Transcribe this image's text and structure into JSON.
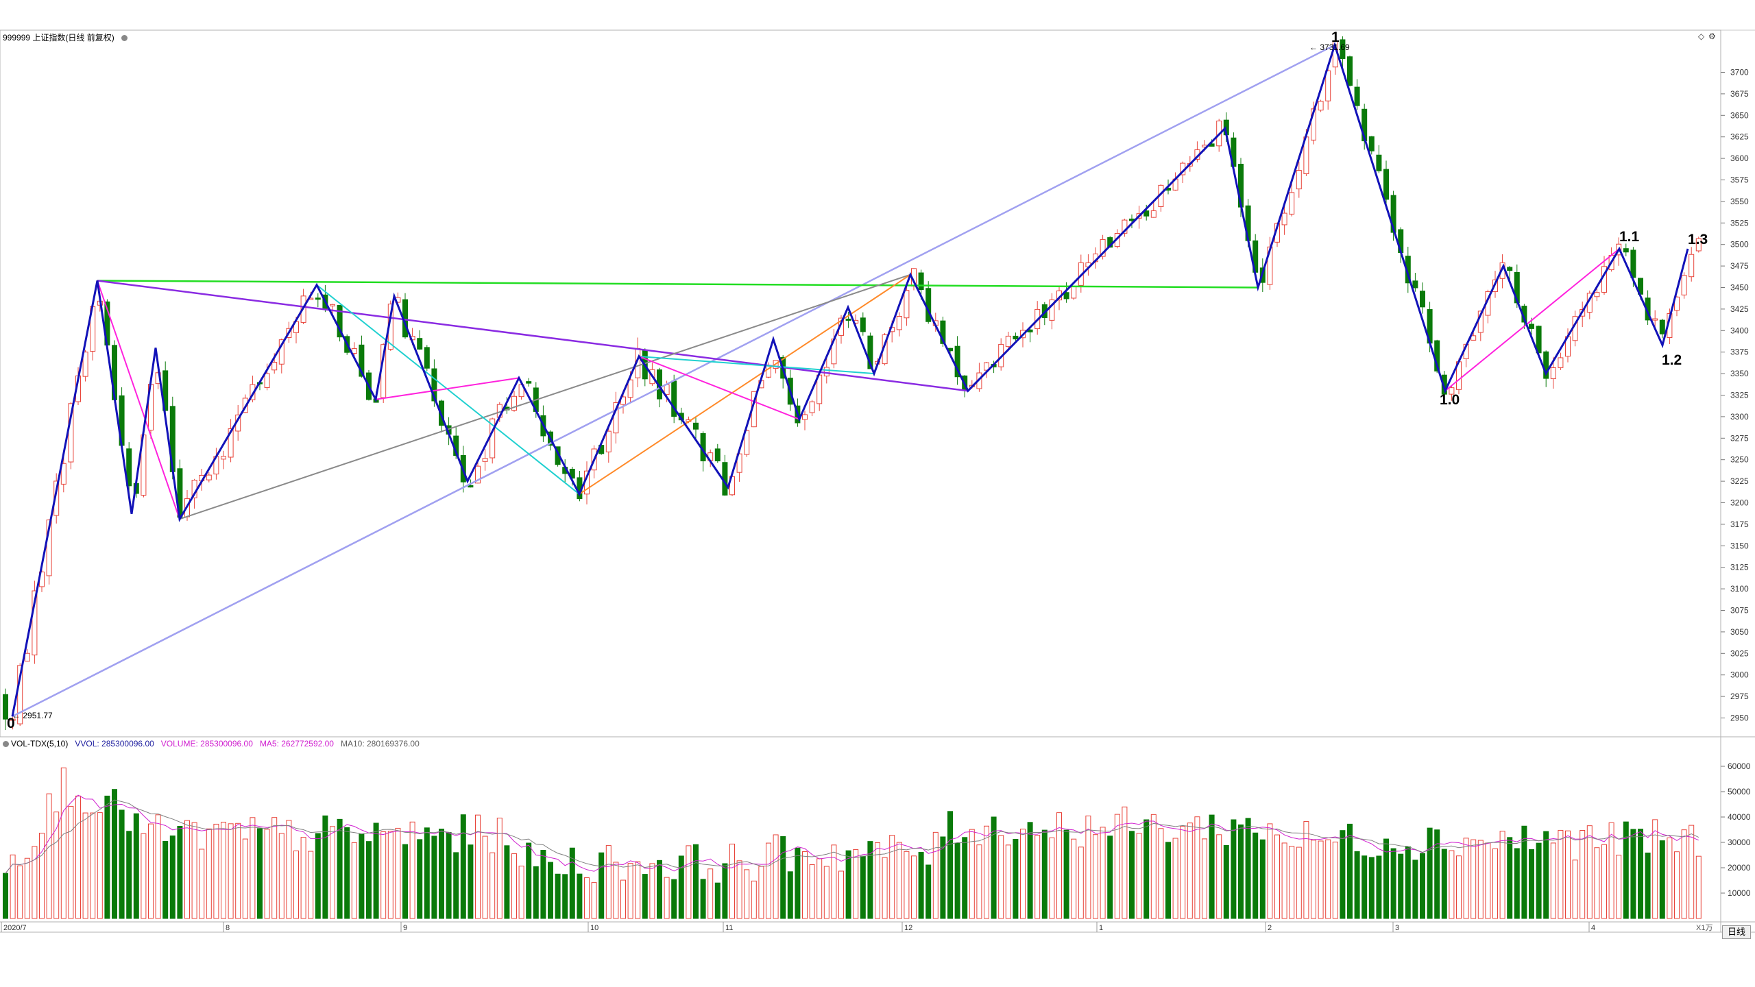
{
  "header": {
    "symbol_title": "999999 上证指数(日线 前复权)",
    "indicator_name": "VOL-TDX(5,10)",
    "vvol_label": "VVOL: 285300096.00",
    "volume_label": "VOLUME: 285300096.00",
    "ma5_label": "MA5: 262772592.00",
    "ma10_label": "MA10: 280169376.00"
  },
  "annotations": {
    "high_label": "3731.69",
    "low_label": "2951.77",
    "wave_0": "0",
    "wave_1": "1",
    "wave_1_0": "1.0",
    "wave_1_1": "1.1",
    "wave_1_2": "1.2",
    "wave_1_3": "1.3"
  },
  "controls": {
    "period_button": "日线",
    "volume_unit": "X1万"
  },
  "colors": {
    "up": "#e8443a",
    "down": "#0a7a0a",
    "zigzag": "#1212b8",
    "ma5": "#d020d0",
    "ma10": "#808080"
  },
  "chart_data": [
    {
      "type": "candlestick",
      "title": "999999 上证指数(日线 前复权)",
      "price_axis": {
        "min": 2950,
        "max": 3700,
        "step": 25,
        "ylim": [
          2925,
          3750
        ]
      },
      "price_ticks": [
        "2950",
        "2975",
        "3000",
        "3025",
        "3050",
        "3075",
        "3100",
        "3125",
        "3150",
        "3175",
        "3200",
        "3225",
        "3250",
        "3275",
        "3300",
        "3325",
        "3350",
        "3375",
        "3400",
        "3425",
        "3450",
        "3475",
        "3500",
        "3525",
        "3550",
        "3575",
        "3600",
        "3625",
        "3650",
        "3675",
        "3700"
      ],
      "time_ticks": [
        "2020/7",
        "8",
        "9",
        "10",
        "11",
        "12",
        "1",
        "2",
        "3",
        "4"
      ],
      "highest": 3731.69,
      "lowest": 2951.77,
      "pivots": [
        {
          "label": "0",
          "price": 2951.77
        },
        {
          "price": 3458
        },
        {
          "price": 3187
        },
        {
          "price": 3380
        },
        {
          "price": 3181
        },
        {
          "price": 3453
        },
        {
          "price": 3320
        },
        {
          "price": 3440
        },
        {
          "price": 3225
        },
        {
          "price": 3345
        },
        {
          "price": 3210
        },
        {
          "price": 3370
        },
        {
          "price": 3218
        },
        {
          "price": 3390
        },
        {
          "price": 3297
        },
        {
          "price": 3427
        },
        {
          "price": 3350
        },
        {
          "price": 3465
        },
        {
          "price": 3330
        },
        {
          "price": 3635
        },
        {
          "price": 3450
        },
        {
          "label": "1",
          "price": 3731.69
        },
        {
          "label": "1.0",
          "price": 3330
        },
        {
          "price": 3475
        },
        {
          "price": 3350
        },
        {
          "label": "1.1",
          "price": 3495
        },
        {
          "label": "1.2",
          "price": 3383
        },
        {
          "label": "1.3",
          "price": 3495
        }
      ]
    },
    {
      "type": "bar",
      "title": "VOL-TDX(5,10)",
      "volume_axis": {
        "ticks": [
          "10000",
          "20000",
          "30000",
          "40000",
          "50000",
          "60000"
        ],
        "ylim": [
          0,
          70000
        ]
      },
      "unit": "X1万",
      "last_volume": 285300096.0,
      "ma5": 262772592.0,
      "ma10": 280169376.0
    }
  ]
}
